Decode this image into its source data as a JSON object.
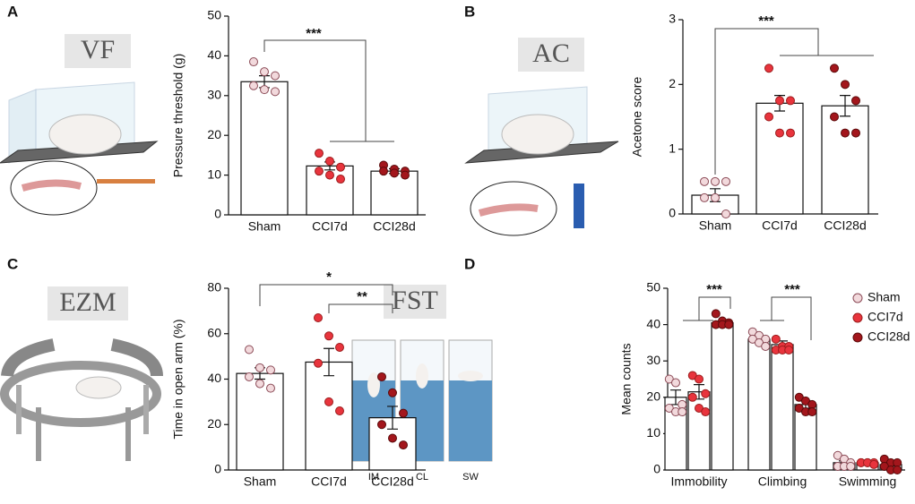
{
  "chart_data": [
    {
      "type": "bar",
      "panel_label": "A",
      "illustration_label": "VF",
      "ylabel": "Pressure threshold (g)",
      "categories": [
        "Sham",
        "CCI7d",
        "CCI28d"
      ],
      "values": [
        33.5,
        12.3,
        11
      ],
      "errors": [
        1.5,
        1,
        0.6
      ],
      "points": [
        [
          38.5,
          36,
          35,
          32.5,
          31.5,
          31
        ],
        [
          15.5,
          13.5,
          12,
          11,
          10,
          9
        ],
        [
          12.5,
          11.5,
          11,
          11,
          10.5,
          10
        ]
      ],
      "colors": [
        "#f2d9dc",
        "#e8343d",
        "#a3161c"
      ],
      "ylim": [
        0,
        50
      ],
      "yticks": [
        0,
        10,
        20,
        30,
        40,
        50
      ],
      "annotations": [
        "***"
      ]
    },
    {
      "type": "bar",
      "panel_label": "B",
      "illustration_label": "AC",
      "ylabel": "Acetone score",
      "categories": [
        "Sham",
        "CCI7d",
        "CCI28d"
      ],
      "values": [
        0.29,
        1.71,
        1.67
      ],
      "errors": [
        0.1,
        0.12,
        0.16
      ],
      "points": [
        [
          0.5,
          0.5,
          0.5,
          0.25,
          0.25,
          0
        ],
        [
          2.25,
          1.75,
          1.75,
          1.5,
          1.25,
          1.25
        ],
        [
          2.25,
          2,
          1.75,
          1.5,
          1.25,
          1.25
        ]
      ],
      "colors": [
        "#f2d9dc",
        "#e8343d",
        "#a3161c"
      ],
      "ylim": [
        0,
        3
      ],
      "yticks": [
        0,
        1,
        2,
        3
      ],
      "annotations": [
        "***"
      ]
    },
    {
      "type": "bar",
      "panel_label": "C",
      "illustration_label": "EZM",
      "ylabel": "Time in open arm (%)",
      "categories": [
        "Sham",
        "CCI7d",
        "CCI28d"
      ],
      "values": [
        42.5,
        47.5,
        23
      ],
      "errors": [
        2.5,
        6,
        5
      ],
      "points": [
        [
          53,
          45,
          44,
          41,
          38,
          36
        ],
        [
          67,
          59,
          54,
          47,
          30,
          26
        ],
        [
          41,
          34,
          25,
          20,
          14,
          11
        ]
      ],
      "colors": [
        "#f2d9dc",
        "#e8343d",
        "#a3161c"
      ],
      "ylim": [
        0,
        80
      ],
      "yticks": [
        0,
        20,
        40,
        60,
        80
      ],
      "annotations": [
        "*",
        "**"
      ]
    },
    {
      "type": "grouped_bar",
      "panel_label": "D",
      "illustration_label": "FST",
      "sub_labels": [
        "IM",
        "CL",
        "SW"
      ],
      "ylabel": "Mean counts",
      "categories": [
        "Immobility",
        "Climbing",
        "Swimming"
      ],
      "series": [
        {
          "name": "Sham",
          "color": "#f2d9dc",
          "values": [
            20,
            36,
            2
          ],
          "errors": [
            2,
            0.8,
            0.5
          ],
          "points": [
            [
              25,
              24,
              18,
              17,
              16,
              16
            ],
            [
              38,
              37,
              36,
              36,
              35,
              34
            ],
            [
              4,
              3,
              2,
              1,
              1,
              1
            ]
          ]
        },
        {
          "name": "CCI7d",
          "color": "#e8343d",
          "values": [
            21.5,
            34.5,
            2
          ],
          "errors": [
            2,
            1,
            0.2
          ],
          "points": [
            [
              26,
              25,
              21,
              20,
              17,
              16
            ],
            [
              36,
              34,
              34,
              33,
              33,
              33
            ],
            [
              2,
              2,
              2,
              2,
              2,
              1.5
            ]
          ]
        },
        {
          "name": "CCI28d",
          "color": "#a3161c",
          "values": [
            40.5,
            18,
            1.5
          ],
          "errors": [
            0.5,
            1,
            0.4
          ],
          "points": [
            [
              43,
              41,
              40.5,
              40,
              40,
              40
            ],
            [
              20,
              19,
              18,
              17,
              16,
              16
            ],
            [
              3,
              2,
              2,
              1,
              0,
              0
            ]
          ]
        }
      ],
      "ylim": [
        0,
        50
      ],
      "yticks": [
        0,
        10,
        20,
        30,
        40,
        50
      ],
      "annotations": [
        "***",
        "***"
      ]
    }
  ]
}
